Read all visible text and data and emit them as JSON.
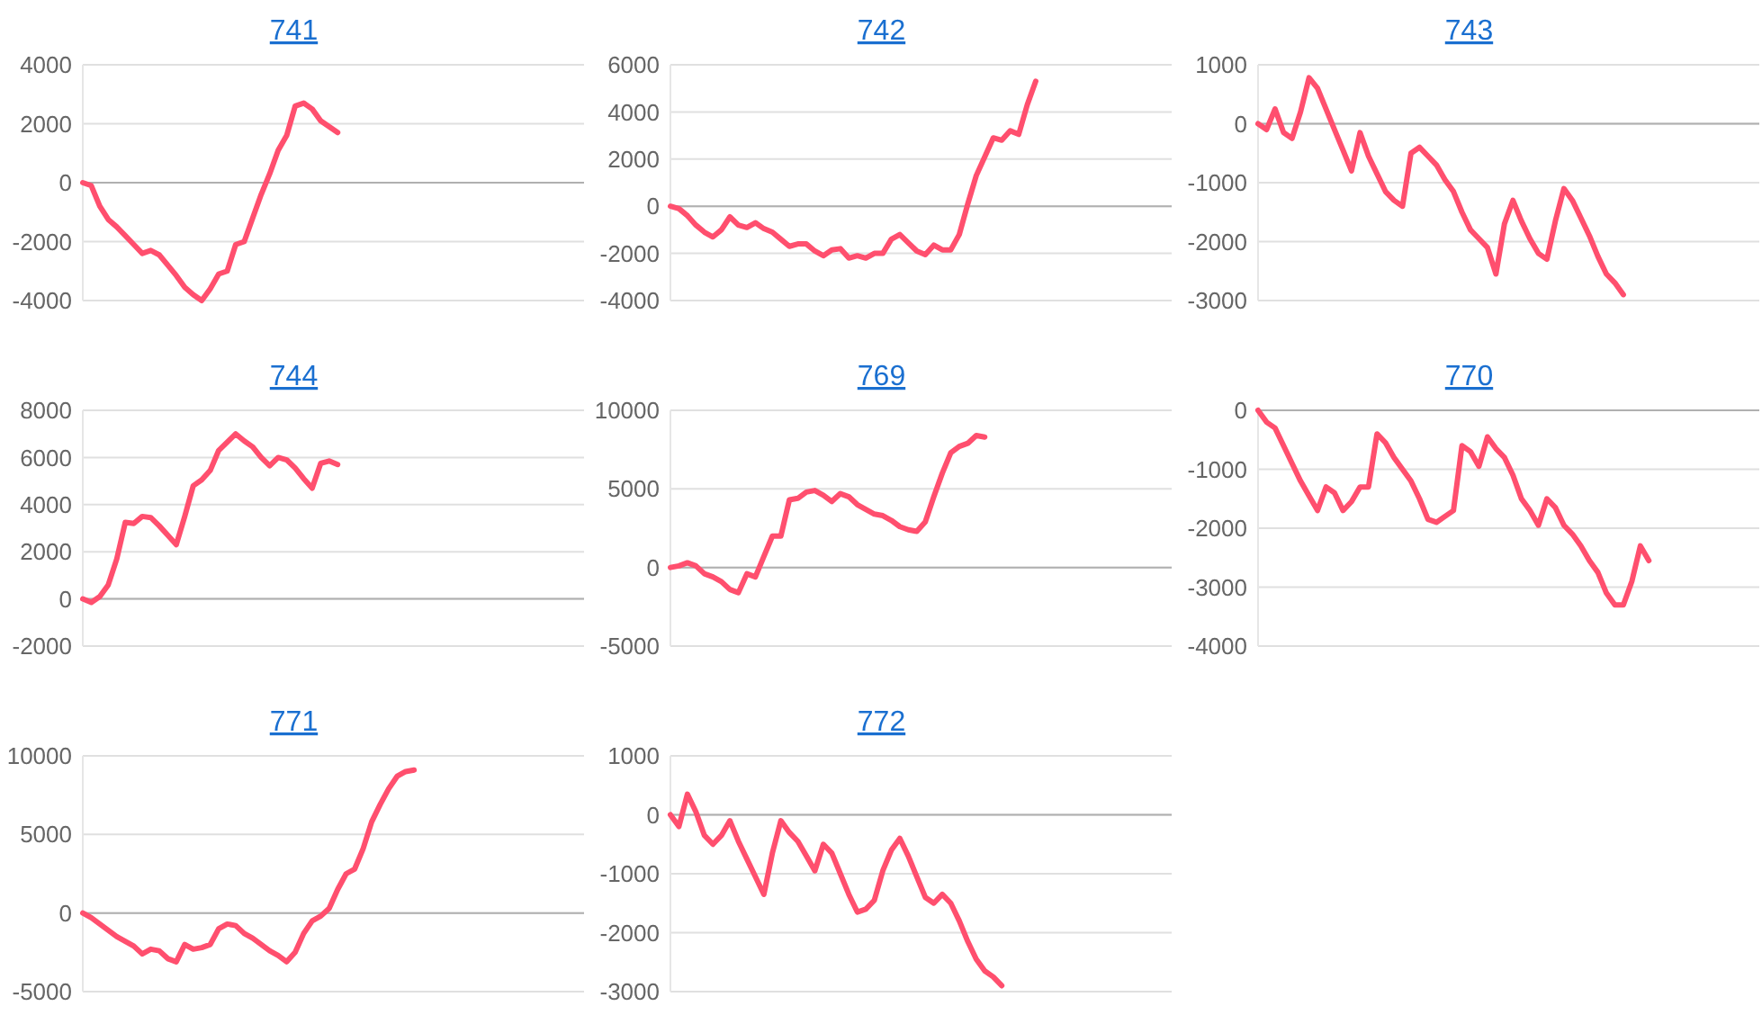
{
  "chart_data": [
    {
      "type": "line",
      "title": "741",
      "categories": [
        null,
        null,
        null,
        null,
        null,
        null,
        null,
        null,
        null,
        null,
        null,
        null,
        null,
        null,
        null,
        null,
        null,
        null,
        null,
        null,
        null,
        null,
        null,
        null,
        null,
        null,
        null,
        null,
        null,
        null,
        null,
        null,
        null,
        null,
        null,
        null,
        null,
        null,
        null,
        null,
        null,
        null,
        null,
        null,
        null,
        null,
        null,
        null,
        null,
        null,
        null,
        null,
        null,
        null,
        null,
        null,
        null,
        null,
        null,
        null
      ],
      "ylim": [
        -4000,
        4000
      ],
      "yticks": [
        -4000,
        -2000,
        0,
        2000,
        4000
      ],
      "grid": "y",
      "series": [
        {
          "color": "#ff4f6e",
          "values": [
            0,
            -100,
            -800,
            -1250,
            -1500,
            -1800,
            -2100,
            -2400,
            -2300,
            -2450,
            -2800,
            -3150,
            -3550,
            -3800,
            -4000,
            -3600,
            -3100,
            -3000,
            -2100,
            -2000,
            -1200,
            -400,
            300,
            1100,
            1600,
            2600,
            2700,
            2500,
            2100,
            1900,
            1700,
            null,
            null,
            null,
            null,
            null,
            null,
            null,
            null,
            null,
            null,
            null,
            null,
            null,
            null,
            null,
            null,
            null,
            null,
            null,
            null,
            null,
            null,
            null,
            null,
            null,
            null,
            null,
            null,
            null
          ]
        }
      ]
    },
    {
      "type": "line",
      "title": "742",
      "categories": [
        null,
        null,
        null,
        null,
        null,
        null,
        null,
        null,
        null,
        null,
        null,
        null,
        null,
        null,
        null,
        null,
        null,
        null,
        null,
        null,
        null,
        null,
        null,
        null,
        null,
        null,
        null,
        null,
        null,
        null,
        null,
        null,
        null,
        null,
        null,
        null,
        null,
        null,
        null,
        null,
        null,
        null,
        null,
        null,
        null,
        null,
        null,
        null,
        null,
        null,
        null,
        null,
        null,
        null,
        null,
        null,
        null,
        null,
        null,
        null
      ],
      "ylim": [
        -4000,
        6000
      ],
      "yticks": [
        -4000,
        -2000,
        0,
        2000,
        4000,
        6000
      ],
      "grid": "y",
      "series": [
        {
          "color": "#ff4f6e",
          "values": [
            0,
            -100,
            -400,
            -800,
            -1100,
            -1300,
            -1000,
            -450,
            -800,
            -900,
            -700,
            -950,
            -1100,
            -1400,
            -1700,
            -1600,
            -1600,
            -1900,
            -2100,
            -1850,
            -1800,
            -2200,
            -2100,
            -2200,
            -2000,
            -2000,
            -1400,
            -1200,
            -1550,
            -1900,
            -2050,
            -1650,
            -1850,
            -1850,
            -1200,
            100,
            1300,
            2100,
            2900,
            2800,
            3200,
            3050,
            4300,
            5300,
            null,
            null,
            null,
            null,
            null,
            null,
            null,
            null,
            null,
            null,
            null,
            null,
            null,
            null,
            null,
            null
          ]
        }
      ]
    },
    {
      "type": "line",
      "title": "743",
      "categories": [
        null,
        null,
        null,
        null,
        null,
        null,
        null,
        null,
        null,
        null,
        null,
        null,
        null,
        null,
        null,
        null,
        null,
        null,
        null,
        null,
        null,
        null,
        null,
        null,
        null,
        null,
        null,
        null,
        null,
        null,
        null,
        null,
        null,
        null,
        null,
        null,
        null,
        null,
        null,
        null,
        null,
        null,
        null,
        null,
        null,
        null,
        null,
        null,
        null,
        null,
        null,
        null,
        null,
        null,
        null,
        null,
        null,
        null,
        null,
        null
      ],
      "ylim": [
        -3000,
        1000
      ],
      "yticks": [
        -3000,
        -2000,
        -1000,
        0,
        1000
      ],
      "grid": "y",
      "series": [
        {
          "color": "#ff4f6e",
          "values": [
            0,
            -100,
            250,
            -150,
            -250,
            200,
            780,
            600,
            250,
            -100,
            -450,
            -800,
            -150,
            -550,
            -850,
            -1150,
            -1300,
            -1400,
            -500,
            -400,
            -550,
            -700,
            -950,
            -1150,
            -1500,
            -1800,
            -1950,
            -2100,
            -2550,
            -1700,
            -1300,
            -1650,
            -1950,
            -2200,
            -2300,
            -1650,
            -1100,
            -1300,
            -1600,
            -1900,
            -2250,
            -2550,
            -2700,
            -2900,
            null,
            null,
            null,
            null,
            null,
            null,
            null,
            null,
            null,
            null,
            null,
            null,
            null,
            null,
            null,
            null
          ]
        }
      ]
    },
    {
      "type": "line",
      "title": "744",
      "categories": [
        null,
        null,
        null,
        null,
        null,
        null,
        null,
        null,
        null,
        null,
        null,
        null,
        null,
        null,
        null,
        null,
        null,
        null,
        null,
        null,
        null,
        null,
        null,
        null,
        null,
        null,
        null,
        null,
        null,
        null,
        null,
        null,
        null,
        null,
        null,
        null,
        null,
        null,
        null,
        null,
        null,
        null,
        null,
        null,
        null,
        null,
        null,
        null,
        null,
        null,
        null,
        null,
        null,
        null,
        null,
        null,
        null,
        null,
        null,
        null
      ],
      "ylim": [
        -2000,
        8000
      ],
      "yticks": [
        -2000,
        0,
        2000,
        4000,
        6000,
        8000
      ],
      "grid": "y",
      "series": [
        {
          "color": "#ff4f6e",
          "values": [
            0,
            -150,
            100,
            600,
            1700,
            3250,
            3200,
            3500,
            3450,
            3100,
            2700,
            2300,
            3500,
            4800,
            5050,
            5450,
            6300,
            6650,
            7000,
            6700,
            6450,
            6000,
            5650,
            6000,
            5900,
            5550,
            5100,
            4700,
            5750,
            5850,
            5700,
            null,
            null,
            null,
            null,
            null,
            null,
            null,
            null,
            null,
            null,
            null,
            null,
            null,
            null,
            null,
            null,
            null,
            null,
            null,
            null,
            null,
            null,
            null,
            null,
            null,
            null,
            null,
            null,
            null
          ]
        }
      ]
    },
    {
      "type": "line",
      "title": "769",
      "categories": [
        null,
        null,
        null,
        null,
        null,
        null,
        null,
        null,
        null,
        null,
        null,
        null,
        null,
        null,
        null,
        null,
        null,
        null,
        null,
        null,
        null,
        null,
        null,
        null,
        null,
        null,
        null,
        null,
        null,
        null,
        null,
        null,
        null,
        null,
        null,
        null,
        null,
        null,
        null,
        null,
        null,
        null,
        null,
        null,
        null,
        null,
        null,
        null,
        null,
        null,
        null,
        null,
        null,
        null,
        null,
        null,
        null,
        null,
        null,
        null
      ],
      "ylim": [
        -5000,
        10000
      ],
      "yticks": [
        -5000,
        0,
        5000,
        10000
      ],
      "grid": "y",
      "series": [
        {
          "color": "#ff4f6e",
          "values": [
            0,
            100,
            300,
            100,
            -400,
            -600,
            -900,
            -1400,
            -1600,
            -400,
            -600,
            700,
            2000,
            2000,
            4300,
            4400,
            4800,
            4900,
            4600,
            4200,
            4700,
            4500,
            4000,
            3700,
            3400,
            3300,
            3000,
            2600,
            2400,
            2300,
            2900,
            4500,
            6000,
            7300,
            7700,
            7900,
            8400,
            8300,
            null,
            null,
            null,
            null,
            null,
            null,
            null,
            null,
            null,
            null,
            null,
            null,
            null,
            null,
            null,
            null,
            null,
            null,
            null,
            null,
            null,
            null
          ]
        }
      ]
    },
    {
      "type": "line",
      "title": "770",
      "categories": [
        null,
        null,
        null,
        null,
        null,
        null,
        null,
        null,
        null,
        null,
        null,
        null,
        null,
        null,
        null,
        null,
        null,
        null,
        null,
        null,
        null,
        null,
        null,
        null,
        null,
        null,
        null,
        null,
        null,
        null,
        null,
        null,
        null,
        null,
        null,
        null,
        null,
        null,
        null,
        null,
        null,
        null,
        null,
        null,
        null,
        null,
        null,
        null,
        null,
        null,
        null,
        null,
        null,
        null,
        null,
        null,
        null,
        null,
        null,
        null
      ],
      "ylim": [
        -4000,
        0
      ],
      "yticks": [
        -4000,
        -3000,
        -2000,
        -1000,
        0
      ],
      "grid": "y",
      "series": [
        {
          "color": "#ff4f6e",
          "values": [
            0,
            -200,
            -300,
            -600,
            -900,
            -1200,
            -1450,
            -1700,
            -1300,
            -1400,
            -1700,
            -1550,
            -1300,
            -1300,
            -400,
            -550,
            -800,
            -1000,
            -1200,
            -1500,
            -1850,
            -1900,
            -1800,
            -1700,
            -600,
            -700,
            -950,
            -450,
            -650,
            -800,
            -1100,
            -1500,
            -1700,
            -1950,
            -1500,
            -1650,
            -1950,
            -2100,
            -2300,
            -2550,
            -2750,
            -3100,
            -3300,
            -3300,
            -2900,
            -2300,
            -2550,
            null,
            null,
            null,
            null,
            null,
            null,
            null,
            null,
            null,
            null,
            null,
            null,
            null
          ]
        }
      ]
    },
    {
      "type": "line",
      "title": "771",
      "categories": [
        null,
        null,
        null,
        null,
        null,
        null,
        null,
        null,
        null,
        null,
        null,
        null,
        null,
        null,
        null,
        null,
        null,
        null,
        null,
        null,
        null,
        null,
        null,
        null,
        null,
        null,
        null,
        null,
        null,
        null,
        null,
        null,
        null,
        null,
        null,
        null,
        null,
        null,
        null,
        null,
        null,
        null,
        null,
        null,
        null,
        null,
        null,
        null,
        null,
        null,
        null,
        null,
        null,
        null,
        null,
        null,
        null,
        null,
        null,
        null
      ],
      "ylim": [
        -5000,
        10000
      ],
      "yticks": [
        -5000,
        0,
        5000,
        10000
      ],
      "grid": "y",
      "series": [
        {
          "color": "#ff4f6e",
          "values": [
            0,
            -300,
            -700,
            -1100,
            -1500,
            -1800,
            -2100,
            -2600,
            -2300,
            -2400,
            -2900,
            -3100,
            -2000,
            -2300,
            -2200,
            -2000,
            -1000,
            -700,
            -800,
            -1300,
            -1600,
            -2000,
            -2400,
            -2700,
            -3100,
            -2500,
            -1300,
            -500,
            -200,
            300,
            1500,
            2500,
            2800,
            4100,
            5800,
            6900,
            7900,
            8700,
            9000,
            9100,
            null,
            null,
            null,
            null,
            null,
            null,
            null,
            null,
            null,
            null,
            null,
            null,
            null,
            null,
            null,
            null,
            null,
            null,
            null,
            null
          ]
        }
      ]
    },
    {
      "type": "line",
      "title": "772",
      "categories": [
        null,
        null,
        null,
        null,
        null,
        null,
        null,
        null,
        null,
        null,
        null,
        null,
        null,
        null,
        null,
        null,
        null,
        null,
        null,
        null,
        null,
        null,
        null,
        null,
        null,
        null,
        null,
        null,
        null,
        null,
        null,
        null,
        null,
        null,
        null,
        null,
        null,
        null,
        null,
        null,
        null,
        null,
        null,
        null,
        null,
        null,
        null,
        null,
        null,
        null,
        null,
        null,
        null,
        null,
        null,
        null,
        null,
        null,
        null,
        null
      ],
      "ylim": [
        -3000,
        1000
      ],
      "yticks": [
        -3000,
        -2000,
        -1000,
        0,
        1000
      ],
      "grid": "y",
      "series": [
        {
          "color": "#ff4f6e",
          "values": [
            0,
            -200,
            350,
            50,
            -350,
            -500,
            -350,
            -100,
            -450,
            -750,
            -1050,
            -1350,
            -650,
            -100,
            -300,
            -450,
            -700,
            -950,
            -500,
            -650,
            -1000,
            -1350,
            -1650,
            -1600,
            -1450,
            -950,
            -600,
            -400,
            -700,
            -1050,
            -1400,
            -1500,
            -1350,
            -1500,
            -1800,
            -2150,
            -2450,
            -2650,
            -2750,
            -2900,
            null,
            null,
            null,
            null,
            null,
            null,
            null,
            null,
            null,
            null,
            null,
            null,
            null,
            null,
            null,
            null,
            null,
            null,
            null,
            null
          ]
        }
      ]
    }
  ]
}
